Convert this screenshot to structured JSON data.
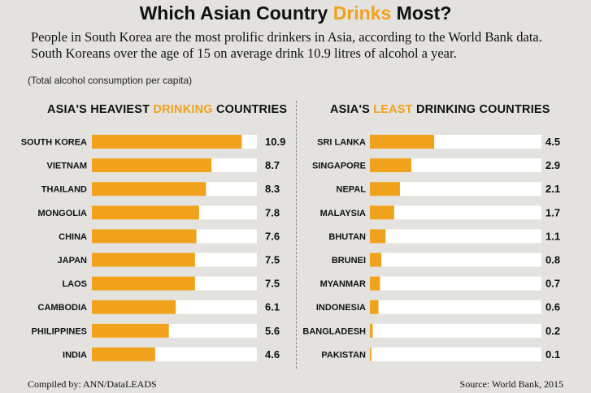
{
  "title": {
    "part1": "Which Asian Country ",
    "highlight": "Drinks",
    "part2": " Most?"
  },
  "subtitle": "People in South Korea are the most prolific drinkers in Asia, according to the World Bank data. South Koreans over the age of 15 on average drink 10.9 litres of alcohol a year.",
  "note": "(Total alcohol consumption per capita)",
  "left_heading": {
    "part1": "ASIA'S HEAVIEST ",
    "highlight": "DRINKING",
    "part2": " COUNTRIES"
  },
  "right_heading": {
    "part1": "ASIA'S ",
    "highlight": "LEAST",
    "part2": " DRINKING COUNTRIES"
  },
  "footer": {
    "compiled": "Compiled by: ANN/DataLEADS",
    "source": "Source: World Bank, 2015"
  },
  "colors": {
    "bar": "#f0a21c",
    "track": "#ffffff",
    "background": "#e4e2df"
  },
  "chart_data": [
    {
      "type": "bar",
      "orientation": "horizontal",
      "title": "ASIA'S HEAVIEST DRINKING COUNTRIES",
      "categories": [
        "SOUTH KOREA",
        "VIETNAM",
        "THAILAND",
        "MONGOLIA",
        "CHINA",
        "JAPAN",
        "LAOS",
        "CAMBODIA",
        "PHILIPPINES",
        "INDIA"
      ],
      "values": [
        10.9,
        8.7,
        8.3,
        7.8,
        7.6,
        7.5,
        7.5,
        6.1,
        5.6,
        4.6
      ],
      "value_labels": [
        "10.9",
        "8.7",
        "8.3",
        "7.8",
        "7.6",
        "7.5",
        "7.5",
        "6.1",
        "5.6",
        "4.6"
      ],
      "xlim": [
        0,
        12
      ],
      "grid": false
    },
    {
      "type": "bar",
      "orientation": "horizontal",
      "title": "ASIA'S LEAST DRINKING COUNTRIES",
      "categories": [
        "SRI LANKA",
        "SINGAPORE",
        "NEPAL",
        "MALAYSIA",
        "BHUTAN",
        "BRUNEI",
        "MYANMAR",
        "INDONESIA",
        "BANGLADESH",
        "PAKISTAN"
      ],
      "values": [
        4.5,
        2.9,
        2.1,
        1.7,
        1.1,
        0.8,
        0.7,
        0.6,
        0.2,
        0.1
      ],
      "value_labels": [
        "4.5",
        "2.9",
        "2.1",
        "1.7",
        "1.1",
        "0.8",
        "0.7",
        "0.6",
        "0.2",
        "0.1"
      ],
      "xlim": [
        0,
        12
      ],
      "grid": false
    }
  ]
}
